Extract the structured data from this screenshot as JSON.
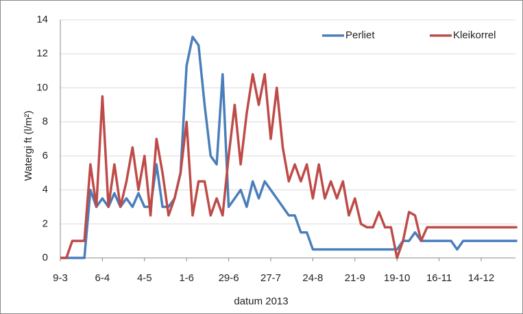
{
  "chart_data": {
    "type": "line",
    "x_label": "datum 2013",
    "y_label": "Watergi ft (l/m²)",
    "categories": [
      "9-3",
      null,
      null,
      null,
      null,
      null,
      null,
      "6-4",
      null,
      null,
      null,
      null,
      null,
      null,
      "4-5",
      null,
      null,
      null,
      null,
      null,
      null,
      "1-6",
      null,
      null,
      null,
      null,
      null,
      null,
      "29-6",
      null,
      null,
      null,
      null,
      null,
      null,
      "27-7",
      null,
      null,
      null,
      null,
      null,
      null,
      "24-8",
      null,
      null,
      null,
      null,
      null,
      null,
      "21-9",
      null,
      null,
      null,
      null,
      null,
      null,
      "19-10",
      null,
      null,
      null,
      null,
      null,
      null,
      "16-11",
      null,
      null,
      null,
      null,
      null,
      null,
      "14-12",
      null,
      null,
      null,
      null,
      null,
      null
    ],
    "series": [
      {
        "name": "Perliet",
        "color": "#4a7ebb",
        "values": [
          0,
          0,
          0,
          0,
          0,
          4,
          3,
          3.5,
          3,
          3.8,
          3,
          3.5,
          3,
          3.8,
          3,
          3,
          5.5,
          3,
          3,
          3.5,
          5,
          11.3,
          13,
          12.5,
          9,
          6,
          5.5,
          10.8,
          3,
          3.5,
          4,
          3,
          4.5,
          3.5,
          4.5,
          4,
          3.5,
          3,
          2.5,
          2.5,
          1.5,
          1.5,
          0.5,
          0.5,
          0.5,
          0.5,
          0.5,
          0.5,
          0.5,
          0.5,
          0.5,
          0.5,
          0.5,
          0.5,
          0.5,
          0.5,
          0.5,
          1,
          1,
          1.5,
          1,
          1,
          1,
          1,
          1,
          1,
          0.5,
          1,
          1,
          1,
          1,
          1,
          1,
          1,
          1,
          1,
          1
        ]
      },
      {
        "name": "Kleikorrel",
        "color": "#be4b48",
        "values": [
          0,
          0,
          1,
          1,
          1,
          5.5,
          3,
          9.5,
          3,
          5.5,
          3,
          4.5,
          6.5,
          4,
          6,
          2.5,
          7,
          5,
          2.5,
          3.5,
          5,
          8,
          2.5,
          4.5,
          4.5,
          2.5,
          3.5,
          2.5,
          6,
          9,
          5.5,
          8.5,
          10.8,
          9,
          10.8,
          7,
          10,
          6.5,
          4.5,
          5.5,
          4.5,
          5.5,
          3.5,
          5.5,
          3.5,
          4.5,
          3.5,
          4.5,
          2.5,
          3.5,
          2,
          1.8,
          1.8,
          2.7,
          1.8,
          1.8,
          0,
          1,
          2.7,
          2.5,
          1,
          1.8,
          1.8,
          1.8,
          1.8,
          1.8,
          1.8,
          1.8,
          1.8,
          1.8,
          1.8,
          1.8,
          1.8,
          1.8,
          1.8,
          1.8,
          1.8
        ]
      }
    ],
    "ylim": [
      0,
      14
    ],
    "yticks": [
      0,
      2,
      4,
      6,
      8,
      10,
      12,
      14
    ],
    "grid": true,
    "legend": "top-right"
  }
}
